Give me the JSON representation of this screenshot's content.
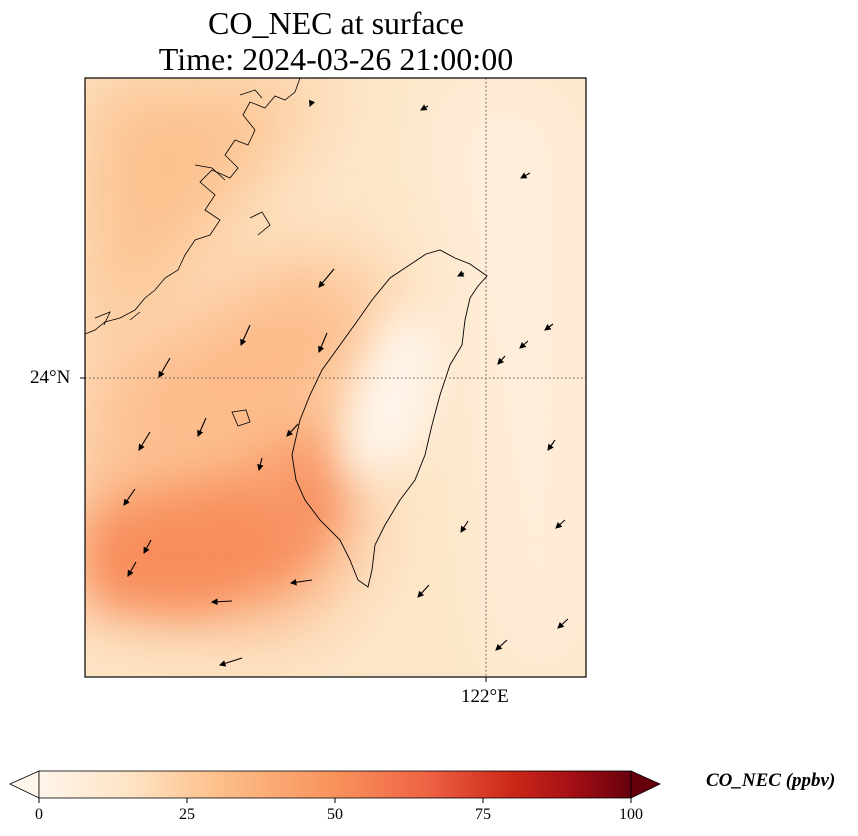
{
  "title_line1": "CO_NEC at surface",
  "title_line2": "Time: 2024-03-26 21:00:00",
  "lat_tick_label": "24°N",
  "lon_tick_label": "122°E",
  "colorbar": {
    "label": "CO_NEC (ppbv)",
    "min": 0,
    "max": 100,
    "ticks": [
      {
        "label": "0",
        "value": 0
      },
      {
        "label": "25",
        "value": 25
      },
      {
        "label": "50",
        "value": 50
      },
      {
        "label": "75",
        "value": 75
      },
      {
        "label": "100",
        "value": 100
      }
    ],
    "extend": "both",
    "colormap_stops": [
      "#fff5eb",
      "#fdd0a2",
      "#fdae6b",
      "#f16913",
      "#d94801",
      "#a50f15",
      "#67000d"
    ]
  },
  "map": {
    "gridlines": [
      "24°N",
      "122°E"
    ],
    "field_description_values": {
      "high_band_value_ppbv": 45,
      "island_interior_value_ppbv": 2,
      "background_value_ppbv": 10
    }
  }
}
